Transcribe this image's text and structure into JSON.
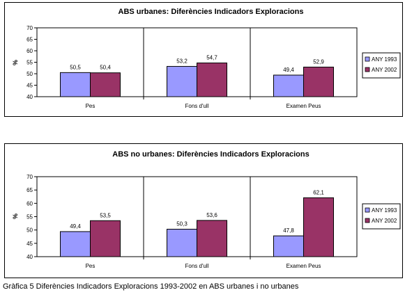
{
  "caption": "Gràfica 5 Diferències Indicadors Exploracions 1993-2002 en ABS urbanes i no urbanes",
  "chart_data": [
    {
      "type": "bar",
      "title": "ABS urbanes: Diferències Indicadors Exploracions",
      "ylabel": "%",
      "ylim": [
        40,
        70
      ],
      "yticks": [
        "40",
        "45",
        "50",
        "55",
        "60",
        "65",
        "70"
      ],
      "categories": [
        "Pes",
        "Fons d'ull",
        "Examen Peus"
      ],
      "grid": false,
      "legend": "right",
      "series": [
        {
          "name": "ANY 1993",
          "color": "#9999ff",
          "values": [
            50.5,
            53.2,
            49.4
          ],
          "labels": [
            "50,5",
            "53,2",
            "49,4"
          ]
        },
        {
          "name": "ANY 2002",
          "color": "#993366",
          "values": [
            50.4,
            54.7,
            52.9
          ],
          "labels": [
            "50,4",
            "54,7",
            "52,9"
          ]
        }
      ]
    },
    {
      "type": "bar",
      "title": "ABS no urbanes: Diferències Indicadors Exploracions",
      "ylabel": "%",
      "ylim": [
        40,
        70
      ],
      "yticks": [
        "40",
        "45",
        "50",
        "55",
        "60",
        "65",
        "70"
      ],
      "categories": [
        "Pes",
        "Fons d'ull",
        "Examen Peus"
      ],
      "grid": false,
      "legend": "right",
      "series": [
        {
          "name": "ANY 1993",
          "color": "#9999ff",
          "values": [
            49.4,
            50.3,
            47.8
          ],
          "labels": [
            "49,4",
            "50,3",
            "47,8"
          ]
        },
        {
          "name": "ANY 2002",
          "color": "#993366",
          "values": [
            53.5,
            53.6,
            62.1
          ],
          "labels": [
            "53,5",
            "53,6",
            "62,1"
          ]
        }
      ]
    }
  ]
}
